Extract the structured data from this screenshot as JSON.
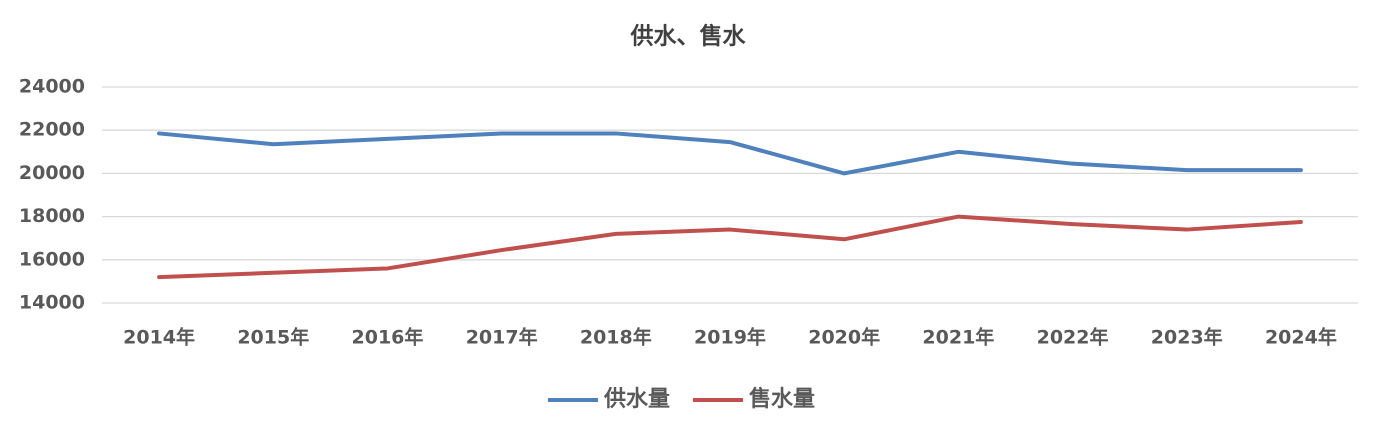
{
  "chart_data": {
    "type": "line",
    "title": "供水、售水",
    "categories": [
      "2014年",
      "2015年",
      "2016年",
      "2017年",
      "2018年",
      "2019年",
      "2020年",
      "2021年",
      "2022年",
      "2023年",
      "2024年"
    ],
    "series": [
      {
        "name": "供水量",
        "color": "#4f81bd",
        "values": [
          21850,
          21350,
          21600,
          21850,
          21850,
          21450,
          20000,
          21000,
          20450,
          20150,
          20150
        ]
      },
      {
        "name": "售水量",
        "color": "#c0504d",
        "values": [
          15200,
          15400,
          15600,
          16450,
          17200,
          17400,
          16950,
          18000,
          17650,
          17400,
          17750
        ]
      }
    ],
    "ylim": [
      14000,
      24000
    ],
    "yticks": [
      14000,
      16000,
      18000,
      20000,
      22000,
      24000
    ],
    "grid": true,
    "legend": "bottom"
  }
}
